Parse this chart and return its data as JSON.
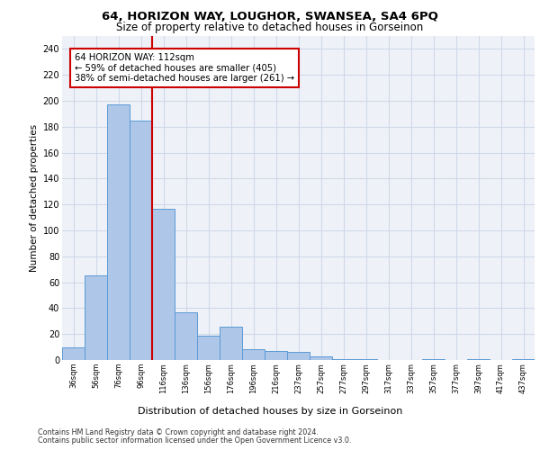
{
  "title": "64, HORIZON WAY, LOUGHOR, SWANSEA, SA4 6PQ",
  "subtitle": "Size of property relative to detached houses in Gorseinon",
  "xlabel": "Distribution of detached houses by size in Gorseinon",
  "ylabel": "Number of detached properties",
  "categories": [
    "36sqm",
    "56sqm",
    "76sqm",
    "96sqm",
    "116sqm",
    "136sqm",
    "156sqm",
    "176sqm",
    "196sqm",
    "216sqm",
    "237sqm",
    "257sqm",
    "277sqm",
    "297sqm",
    "317sqm",
    "337sqm",
    "357sqm",
    "377sqm",
    "397sqm",
    "417sqm",
    "437sqm"
  ],
  "values": [
    10,
    65,
    197,
    185,
    117,
    37,
    19,
    26,
    8,
    7,
    6,
    3,
    1,
    1,
    0,
    0,
    1,
    0,
    1,
    0,
    1
  ],
  "bar_color": "#aec6e8",
  "bar_edge_color": "#5b9bd5",
  "marker_line_color": "#cc0000",
  "annotation_text": "64 HORIZON WAY: 112sqm\n← 59% of detached houses are smaller (405)\n38% of semi-detached houses are larger (261) →",
  "annotation_box_color": "#ffffff",
  "annotation_box_edge_color": "#cc0000",
  "ylim": [
    0,
    250
  ],
  "yticks": [
    0,
    20,
    40,
    60,
    80,
    100,
    120,
    140,
    160,
    180,
    200,
    220,
    240
  ],
  "grid_color": "#d0d8e8",
  "bg_color": "#eef2f8",
  "footer1": "Contains HM Land Registry data © Crown copyright and database right 2024.",
  "footer2": "Contains public sector information licensed under the Open Government Licence v3.0."
}
